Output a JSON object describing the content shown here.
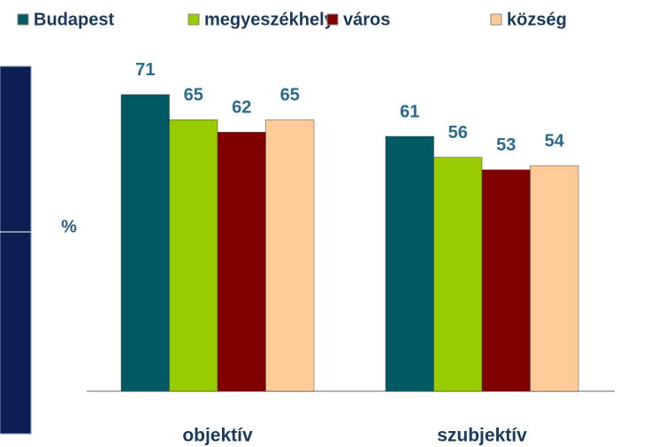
{
  "chart_data": {
    "type": "bar",
    "categories": [
      "objektív",
      "szubjektív"
    ],
    "y_label": "%",
    "legend": "top",
    "series": [
      {
        "name": "Budapest",
        "color": "#005a64",
        "values": [
          71,
          61
        ]
      },
      {
        "name": "megyeszékhely",
        "color": "#99cc00",
        "values": [
          65,
          56
        ]
      },
      {
        "name": "város",
        "color": "#800000",
        "values": [
          62,
          53
        ]
      },
      {
        "name": "község",
        "color": "#ffcc99",
        "values": [
          65,
          54
        ]
      }
    ]
  }
}
